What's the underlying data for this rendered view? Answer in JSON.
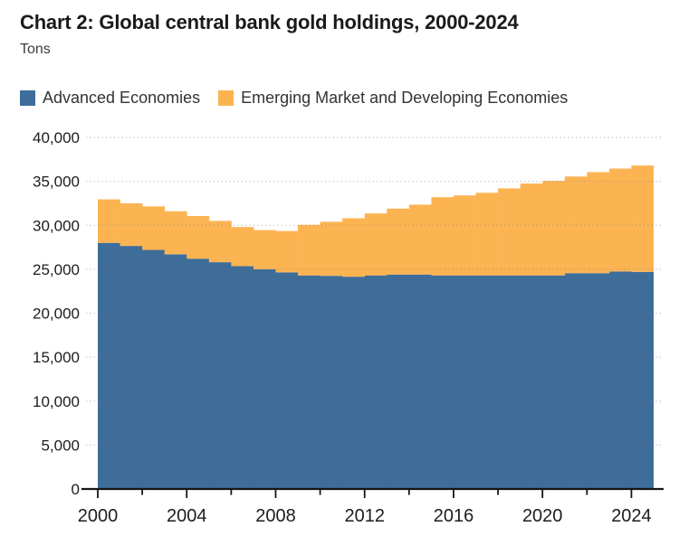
{
  "header": {
    "title": "Chart 2: Global central bank gold holdings, 2000-2024",
    "subtitle": "Tons"
  },
  "legend": {
    "items": [
      {
        "label": "Advanced Economies",
        "color": "#3e6d99"
      },
      {
        "label": "Emerging Market and Developing Economies",
        "color": "#fcb453"
      }
    ]
  },
  "chart_data": {
    "type": "area",
    "variant": "stacked-step-columns",
    "title": "Chart 2: Global central bank gold holdings, 2000-2024",
    "units_label": "Tons",
    "x": [
      2000,
      2001,
      2002,
      2003,
      2004,
      2005,
      2006,
      2007,
      2008,
      2009,
      2010,
      2011,
      2012,
      2013,
      2014,
      2015,
      2016,
      2017,
      2018,
      2019,
      2020,
      2021,
      2022,
      2023,
      2024
    ],
    "series": [
      {
        "name": "Advanced Economies",
        "color": "#3e6d99",
        "values": [
          28000,
          27650,
          27200,
          26700,
          26200,
          25800,
          25350,
          25000,
          24650,
          24300,
          24250,
          24150,
          24300,
          24400,
          24400,
          24300,
          24300,
          24300,
          24300,
          24300,
          24300,
          24550,
          24550,
          24750,
          24700
        ]
      },
      {
        "name": "Emerging Market and Developing Economies",
        "color": "#fcb453",
        "values": [
          4950,
          4850,
          4950,
          4900,
          4850,
          4700,
          4450,
          4450,
          4700,
          5750,
          6150,
          6650,
          7050,
          7500,
          7950,
          8900,
          9100,
          9400,
          9900,
          10450,
          10750,
          11000,
          11500,
          11700,
          12100
        ]
      }
    ],
    "ylim": [
      0,
      40000
    ],
    "ytick_interval": 5000,
    "ytick_labels": [
      "0",
      "5,000",
      "10,000",
      "15,000",
      "20,000",
      "25,000",
      "30,000",
      "35,000",
      "40,000"
    ],
    "xtick_minor_years": [
      2000,
      2002,
      2004,
      2006,
      2008,
      2010,
      2012,
      2014,
      2016,
      2018,
      2020,
      2022,
      2024
    ],
    "xtick_labeled_years": [
      2000,
      2004,
      2008,
      2012,
      2016,
      2020,
      2024
    ],
    "xtick_labels": [
      "2000",
      "2004",
      "2008",
      "2012",
      "2016",
      "2020",
      "2024"
    ],
    "grid": "horizontal-dotted",
    "legend_position": "top-left",
    "colors": {
      "background": "#ffffff",
      "axis": "#161616",
      "tick_label": "#1d1d1d",
      "gridline": "#6f6f6f"
    }
  }
}
